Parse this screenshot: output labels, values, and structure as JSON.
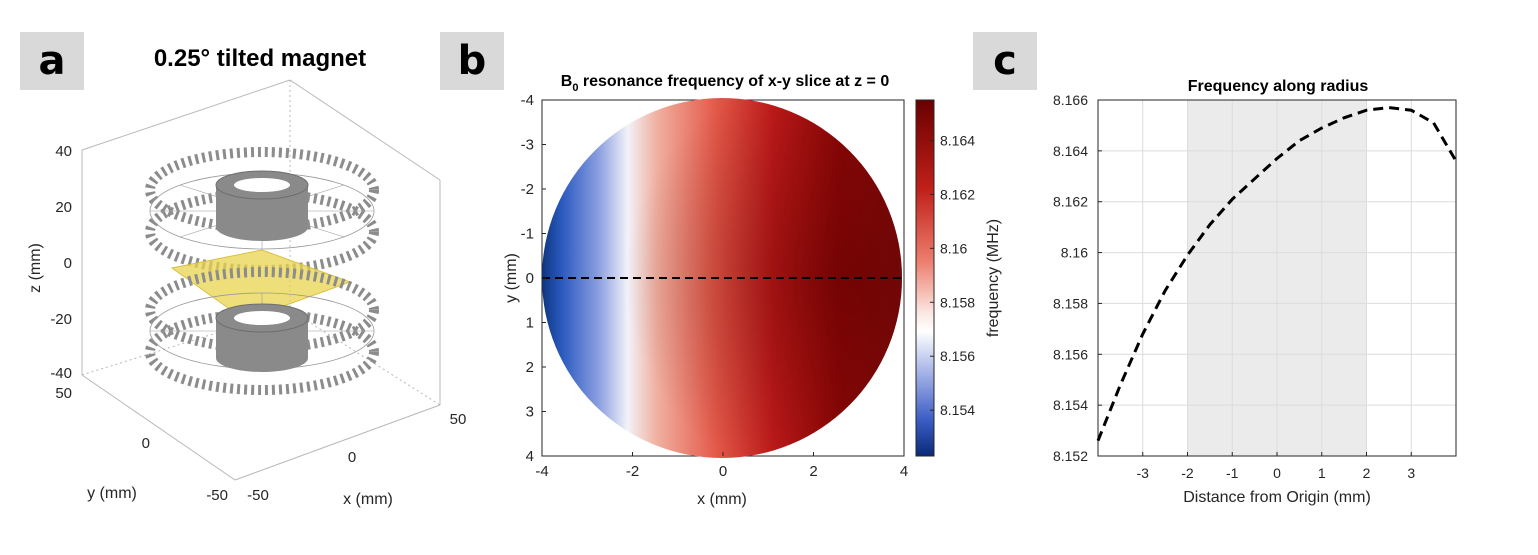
{
  "labels": {
    "a": "a",
    "b": "b",
    "c": "c"
  },
  "panel_a": {
    "title": "0.25° tilted magnet",
    "zlabel": "z (mm)",
    "ylabel": "y (mm)",
    "xlabel": "x (mm)",
    "zticks": [
      "40",
      "20",
      "0",
      "-20",
      "-40"
    ],
    "yticks": [
      "50",
      "0",
      "-50"
    ],
    "xticks": [
      "-50",
      "0",
      "50"
    ],
    "colors": {
      "magnets": "#808080",
      "slice": "#e8d44d"
    }
  },
  "chart_data": [
    {
      "type": "heatmap",
      "title_main": "B",
      "title_sub": "0",
      "title_rest": " resonance frequency of x-y slice at z = 0",
      "xlabel": "x (mm)",
      "ylabel": "y (mm)",
      "xlim": [
        -4,
        4
      ],
      "ylim": [
        -4,
        4
      ],
      "y_reversed": true,
      "xticks": [
        "-4",
        "-2",
        "0",
        "2",
        "4"
      ],
      "yticks": [
        "-4",
        "-3",
        "-2",
        "-1",
        "0",
        "1",
        "2",
        "3",
        "4"
      ],
      "colorbar": {
        "label": "frequency (MHz)",
        "range": [
          8.1523,
          8.1655
        ],
        "ticks": [
          "8.154",
          "8.156",
          "8.158",
          "8.16",
          "8.162",
          "8.164"
        ],
        "colormap": [
          "#0a3278",
          "#ffffff",
          "#6a0000"
        ]
      },
      "dashed_line_y": 0
    },
    {
      "type": "line",
      "title": "Frequency along radius",
      "xlabel": "Distance from Origin (mm)",
      "ylabel": "",
      "xlim": [
        -4,
        4
      ],
      "ylim": [
        8.152,
        8.166
      ],
      "xticks": [
        "-3",
        "-2",
        "-1",
        "0",
        "1",
        "2",
        "3"
      ],
      "yticks": [
        "8.166",
        "8.164",
        "8.162",
        "8.16",
        "8.158",
        "8.156",
        "8.154",
        "8.152"
      ],
      "shaded_region": [
        -2,
        2
      ],
      "grid": true,
      "x": [
        -4,
        -3.5,
        -3,
        -2.5,
        -2,
        -1.5,
        -1,
        -0.5,
        0,
        0.5,
        1,
        1.5,
        2,
        2.5,
        3,
        3.5,
        4
      ],
      "y": [
        8.1526,
        8.1548,
        8.1568,
        8.1585,
        8.1599,
        8.1611,
        8.1621,
        8.1629,
        8.1637,
        8.1644,
        8.1649,
        8.1653,
        8.1656,
        8.1657,
        8.1656,
        8.1651,
        8.1636
      ]
    }
  ]
}
